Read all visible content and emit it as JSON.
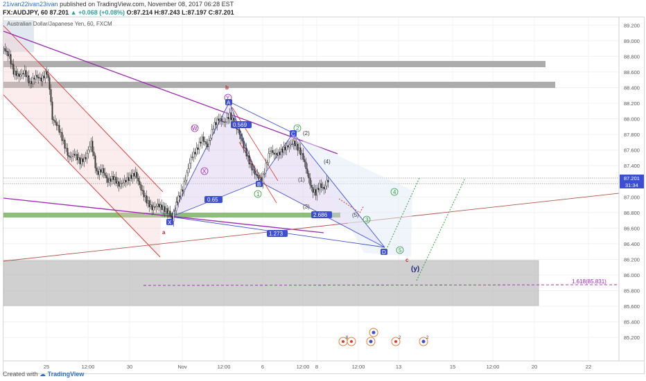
{
  "header": {
    "author": "21ivan22ivan23ivan",
    "published": "published on TradingView.com, November 08, 2017 06:28 EST"
  },
  "quote": {
    "symbol": "FX:AUDJPY, 60",
    "last": "87.201",
    "change": "▲ +0.068 (+0.08%)",
    "ohlc": "O:87.214 H:87.243 L:87.197 C:87.201"
  },
  "chart_data": {
    "type": "candlestick",
    "title": "Australian Dollar/Japanese Yen, 60, FXCM",
    "ylim": [
      84.9,
      89.3
    ],
    "yticks": [
      85.2,
      85.4,
      85.6,
      85.8,
      86.0,
      86.2,
      86.4,
      86.6,
      86.8,
      87.0,
      87.2,
      87.4,
      87.6,
      87.8,
      88.0,
      88.2,
      88.4,
      88.6,
      88.8,
      89.0,
      89.2
    ],
    "ytick_labels": [
      "85.200",
      "85.400",
      "85.600",
      "85.800",
      "86.000",
      "86.200",
      "86.400",
      "86.600",
      "86.800",
      "87.000",
      "87.200",
      "87.400",
      "87.600",
      "87.800",
      "88.000",
      "88.200",
      "88.400",
      "88.600",
      "88.800",
      "89.000",
      "89.200"
    ],
    "xticks": [
      {
        "label": "25",
        "x": 62
      },
      {
        "label": "12:00",
        "x": 122
      },
      {
        "label": "30",
        "x": 182
      },
      {
        "label": "Nov",
        "x": 258
      },
      {
        "label": "12:00",
        "x": 318
      },
      {
        "label": "6",
        "x": 374
      },
      {
        "label": "12:00",
        "x": 432
      },
      {
        "label": "8",
        "x": 452
      },
      {
        "label": "12:00",
        "x": 512
      },
      {
        "label": "13",
        "x": 570
      },
      {
        "label": "15",
        "x": 648
      },
      {
        "label": "12:00",
        "x": 706
      },
      {
        "label": "20",
        "x": 766
      },
      {
        "label": "22",
        "x": 844
      }
    ],
    "last_price": "87.201",
    "countdown": "31:34",
    "price_path": [
      [
        0,
        88.9
      ],
      [
        8,
        88.8
      ],
      [
        14,
        88.6
      ],
      [
        22,
        88.55
      ],
      [
        30,
        88.6
      ],
      [
        38,
        88.45
      ],
      [
        46,
        88.55
      ],
      [
        54,
        88.5
      ],
      [
        62,
        88.6
      ],
      [
        66,
        88.4
      ],
      [
        70,
        88.0
      ],
      [
        78,
        87.9
      ],
      [
        86,
        87.7
      ],
      [
        94,
        87.5
      ],
      [
        102,
        87.55
      ],
      [
        110,
        87.45
      ],
      [
        118,
        87.5
      ],
      [
        126,
        87.7
      ],
      [
        134,
        87.3
      ],
      [
        142,
        87.35
      ],
      [
        150,
        87.2
      ],
      [
        158,
        87.25
      ],
      [
        166,
        87.15
      ],
      [
        174,
        87.2
      ],
      [
        182,
        87.25
      ],
      [
        190,
        87.3
      ],
      [
        198,
        87.1
      ],
      [
        206,
        86.95
      ],
      [
        214,
        86.85
      ],
      [
        222,
        86.9
      ],
      [
        230,
        86.85
      ],
      [
        238,
        86.8
      ],
      [
        243,
        86.72
      ],
      [
        250,
        86.95
      ],
      [
        258,
        87.1
      ],
      [
        264,
        87.3
      ],
      [
        270,
        87.5
      ],
      [
        278,
        87.6
      ],
      [
        286,
        87.75
      ],
      [
        294,
        87.65
      ],
      [
        302,
        87.9
      ],
      [
        310,
        88.0
      ],
      [
        318,
        87.95
      ],
      [
        326,
        88.05
      ],
      [
        332,
        87.95
      ],
      [
        338,
        87.85
      ],
      [
        344,
        87.7
      ],
      [
        350,
        87.55
      ],
      [
        356,
        87.4
      ],
      [
        362,
        87.3
      ],
      [
        368,
        87.25
      ],
      [
        372,
        87.2
      ],
      [
        378,
        87.4
      ],
      [
        384,
        87.6
      ],
      [
        390,
        87.55
      ],
      [
        396,
        87.55
      ],
      [
        402,
        87.6
      ],
      [
        410,
        87.65
      ],
      [
        418,
        87.7
      ],
      [
        426,
        87.6
      ],
      [
        432,
        87.5
      ],
      [
        438,
        87.3
      ],
      [
        444,
        87.1
      ],
      [
        450,
        87.05
      ],
      [
        456,
        87.15
      ],
      [
        462,
        87.1
      ],
      [
        466,
        87.2
      ],
      [
        470,
        87.22
      ]
    ],
    "wave_labels": [
      "b",
      "Y",
      "A",
      "W",
      "X",
      "B",
      "1",
      "2",
      "C",
      "(2)",
      "(4)",
      "(1)",
      "(3)",
      "(5)",
      "X",
      "a",
      "3",
      "4",
      "5",
      "D",
      "c",
      "(y)",
      "0.569",
      "0.65",
      "2.686",
      "1.273",
      "1.618(85.831)"
    ],
    "events": [
      "6",
      "2",
      "2"
    ]
  },
  "footer": {
    "created": "Created with",
    "brand": "TradingView"
  },
  "colors": {
    "purple": "#9c27b0",
    "blue": "#3d4fd1",
    "red": "#e03030",
    "green": "#2e9e3e",
    "brown": "#b0554a",
    "grey_zone": "#9e9e9e",
    "axis_text": "#555555"
  }
}
